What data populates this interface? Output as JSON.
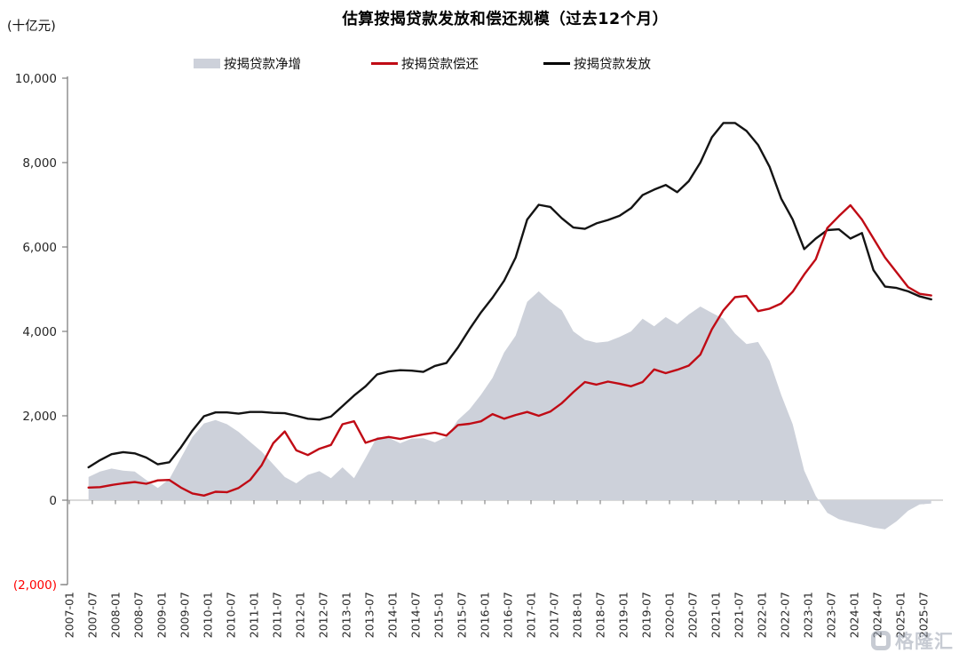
{
  "watermark": {
    "text": "格隆汇"
  },
  "chart_data": {
    "type": "combo",
    "title": "估算按揭贷款发放和偿还规模（过去12个月）",
    "unit_label": "(十亿元)",
    "legend_position": "top",
    "grid": false,
    "y_axis": {
      "min": -2000,
      "max": 10000,
      "step": 2000,
      "tick_labels": [
        "(2,000)",
        "0",
        "2,000",
        "4,000",
        "6,000",
        "8,000",
        "10,000"
      ]
    },
    "x_axis": {
      "tick_labels": [
        "2007-01",
        "2007-07",
        "2008-01",
        "2008-07",
        "2009-01",
        "2009-07",
        "2010-01",
        "2010-07",
        "2011-01",
        "2011-07",
        "2012-01",
        "2012-07",
        "2013-01",
        "2013-07",
        "2014-01",
        "2014-07",
        "2015-01",
        "2015-07",
        "2016-01",
        "2016-07",
        "2017-01",
        "2017-07",
        "2018-01",
        "2018-07",
        "2019-01",
        "2019-07",
        "2020-01",
        "2020-07",
        "2021-01",
        "2021-07",
        "2022-01",
        "2022-07",
        "2023-01",
        "2023-07",
        "2024-01",
        "2024-07",
        "2025-01",
        "2025-07"
      ]
    },
    "x_months_since_2007_01": [
      5,
      8,
      11,
      14,
      17,
      20,
      23,
      26,
      29,
      32,
      35,
      38,
      41,
      44,
      47,
      50,
      53,
      56,
      59,
      62,
      65,
      68,
      71,
      74,
      77,
      80,
      83,
      86,
      89,
      92,
      95,
      98,
      101,
      104,
      107,
      110,
      113,
      116,
      119,
      122,
      125,
      128,
      131,
      134,
      137,
      140,
      143,
      146,
      149,
      152,
      155,
      158,
      161,
      164,
      167,
      170,
      173,
      176,
      179,
      182,
      185,
      188,
      191,
      194,
      197,
      200,
      203,
      206,
      209,
      212,
      215,
      218,
      221,
      224
    ],
    "series": [
      {
        "name": "按揭贷款净增",
        "type": "area",
        "color": "#cdd1da",
        "values": [
          550,
          680,
          750,
          700,
          680,
          480,
          290,
          500,
          1000,
          1500,
          1820,
          1900,
          1800,
          1620,
          1380,
          1150,
          850,
          550,
          400,
          600,
          690,
          520,
          780,
          520,
          1000,
          1500,
          1480,
          1350,
          1460,
          1470,
          1370,
          1500,
          1900,
          2150,
          2500,
          2900,
          3500,
          3900,
          4700,
          4950,
          4700,
          4500,
          4000,
          3800,
          3730,
          3760,
          3870,
          4000,
          4300,
          4120,
          4340,
          4170,
          4400,
          4590,
          4440,
          4300,
          3950,
          3700,
          3750,
          3300,
          2500,
          1800,
          700,
          100,
          -300,
          -450,
          -520,
          -580,
          -650,
          -690,
          -500,
          -250,
          -100,
          -80
        ]
      },
      {
        "name": "按揭贷款发放",
        "type": "line",
        "color": "#141414",
        "values": [
          780,
          950,
          1090,
          1140,
          1110,
          1010,
          850,
          900,
          1250,
          1650,
          1990,
          2080,
          2080,
          2050,
          2090,
          2090,
          2070,
          2060,
          2000,
          1930,
          1910,
          1980,
          2230,
          2480,
          2700,
          2980,
          3050,
          3080,
          3070,
          3040,
          3180,
          3250,
          3620,
          4050,
          4450,
          4800,
          5200,
          5750,
          6650,
          7000,
          6950,
          6680,
          6460,
          6430,
          6560,
          6640,
          6740,
          6920,
          7230,
          7360,
          7470,
          7300,
          7560,
          8000,
          8600,
          8940,
          8940,
          8750,
          8420,
          7900,
          7150,
          6650,
          5950,
          6200,
          6400,
          6420,
          6200,
          6330,
          5450,
          5060,
          5030,
          4950,
          4830,
          4760
        ]
      },
      {
        "name": "按揭贷款偿还",
        "type": "line",
        "color": "#c00b15",
        "values": [
          300,
          310,
          360,
          400,
          430,
          390,
          470,
          480,
          300,
          160,
          110,
          200,
          190,
          290,
          480,
          830,
          1350,
          1630,
          1180,
          1070,
          1220,
          1310,
          1800,
          1870,
          1360,
          1450,
          1500,
          1450,
          1510,
          1560,
          1600,
          1530,
          1780,
          1810,
          1870,
          2040,
          1930,
          2020,
          2090,
          2000,
          2100,
          2300,
          2560,
          2800,
          2740,
          2810,
          2760,
          2700,
          2800,
          3100,
          3010,
          3090,
          3190,
          3450,
          4050,
          4500,
          4810,
          4840,
          4480,
          4540,
          4660,
          4940,
          5350,
          5710,
          6450,
          6730,
          6990,
          6650,
          6200,
          5750,
          5400,
          5050,
          4890,
          4850
        ]
      }
    ],
    "colors": {
      "negative_tick_label": "#ff0000",
      "axis": "#7f7f7f",
      "zero_line": "#c3c3c3",
      "tick_text": "#262626"
    }
  }
}
